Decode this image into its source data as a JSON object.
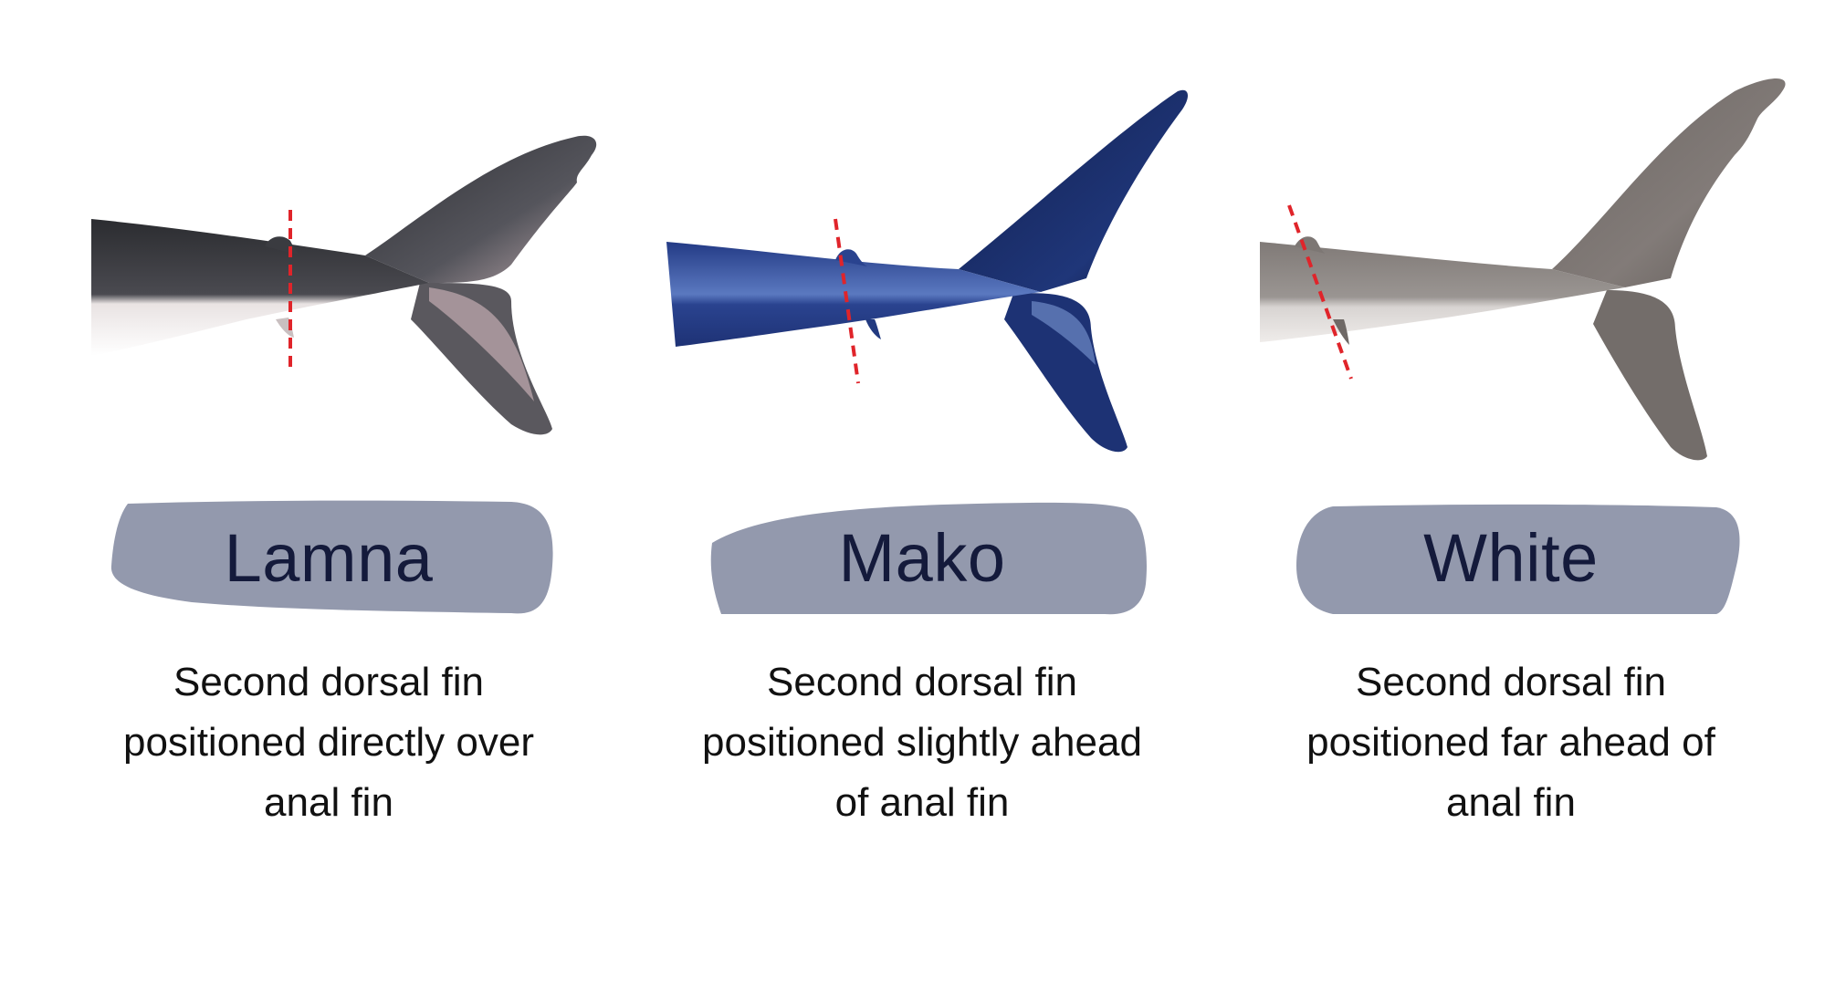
{
  "panels": [
    {
      "name": "Lamna",
      "description_lines": [
        "Second dorsal fin",
        "positioned directly over",
        "anal fin"
      ],
      "body_color": "#3a3b40",
      "belly_color": "#f1ecec"
    },
    {
      "name": "Mako",
      "description_lines": [
        "Second dorsal fin",
        "positioned slightly ahead",
        "of anal fin"
      ],
      "body_color": "#1d2f6e",
      "belly_color": "#4563a8"
    },
    {
      "name": "White",
      "description_lines": [
        "Second dorsal fin",
        "positioned far ahead of",
        "anal fin"
      ],
      "body_color": "#7a7472",
      "belly_color": "#cfcac7"
    }
  ],
  "colors": {
    "label_bg": "#9399ad",
    "label_text": "#141a3b",
    "marker_line": "#e0242a"
  }
}
